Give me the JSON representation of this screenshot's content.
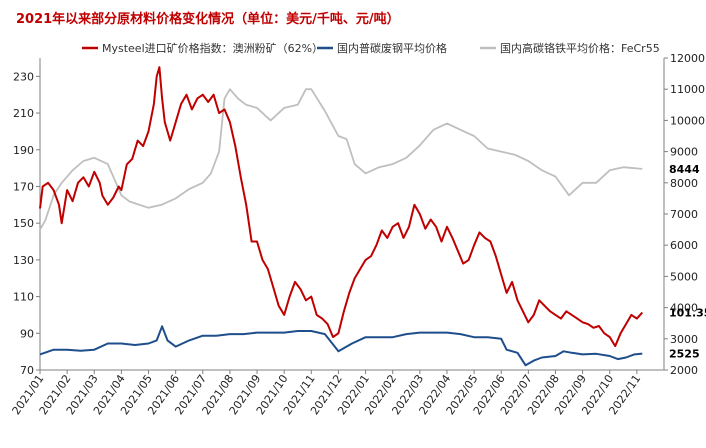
{
  "chart_data": {
    "type": "line",
    "title": "2021年以来部分原材料价格变化情况（单位：美元/千吨、元/吨）",
    "y_left": {
      "ticks": [
        70,
        90,
        110,
        130,
        150,
        170,
        190,
        210,
        230
      ],
      "range": [
        70,
        240
      ]
    },
    "y_right": {
      "ticks": [
        2000,
        3000,
        4000,
        5000,
        6000,
        7000,
        8000,
        9000,
        10000,
        11000,
        12000
      ],
      "range": [
        2000,
        12000
      ]
    },
    "x_ticks": [
      "2021/01",
      "2021/02",
      "2021/03",
      "2021/04",
      "2021/05",
      "2021/06",
      "2021/07",
      "2021/08",
      "2021/09",
      "2021/10",
      "2021/11",
      "2021/12",
      "2022/01",
      "2022/02",
      "2022/03",
      "2022/04",
      "2022/05",
      "2022/06",
      "2022/07",
      "2022/08",
      "2022/09",
      "2022/10",
      "2022/11"
    ],
    "series": [
      {
        "name": "Mysteel进口矿价格指数：澳洲粉矿（62%）",
        "color": "#c00000",
        "axis": "left",
        "end_label": "101.35",
        "points": [
          [
            0,
            158
          ],
          [
            0.1,
            170
          ],
          [
            0.3,
            172
          ],
          [
            0.5,
            168
          ],
          [
            0.7,
            160
          ],
          [
            0.8,
            150
          ],
          [
            1.0,
            168
          ],
          [
            1.2,
            162
          ],
          [
            1.4,
            172
          ],
          [
            1.6,
            175
          ],
          [
            1.8,
            170
          ],
          [
            2.0,
            178
          ],
          [
            2.2,
            172
          ],
          [
            2.3,
            165
          ],
          [
            2.5,
            160
          ],
          [
            2.7,
            164
          ],
          [
            2.9,
            170
          ],
          [
            3.0,
            168
          ],
          [
            3.2,
            182
          ],
          [
            3.4,
            185
          ],
          [
            3.6,
            195
          ],
          [
            3.8,
            192
          ],
          [
            4.0,
            200
          ],
          [
            4.2,
            215
          ],
          [
            4.3,
            230
          ],
          [
            4.4,
            235
          ],
          [
            4.5,
            218
          ],
          [
            4.6,
            205
          ],
          [
            4.8,
            195
          ],
          [
            5.0,
            205
          ],
          [
            5.2,
            215
          ],
          [
            5.4,
            220
          ],
          [
            5.6,
            212
          ],
          [
            5.8,
            218
          ],
          [
            6.0,
            220
          ],
          [
            6.2,
            216
          ],
          [
            6.4,
            220
          ],
          [
            6.6,
            210
          ],
          [
            6.8,
            212
          ],
          [
            7.0,
            205
          ],
          [
            7.2,
            192
          ],
          [
            7.4,
            175
          ],
          [
            7.6,
            160
          ],
          [
            7.8,
            140
          ],
          [
            8.0,
            140
          ],
          [
            8.2,
            130
          ],
          [
            8.4,
            125
          ],
          [
            8.6,
            115
          ],
          [
            8.8,
            105
          ],
          [
            9.0,
            100
          ],
          [
            9.2,
            110
          ],
          [
            9.4,
            118
          ],
          [
            9.6,
            114
          ],
          [
            9.8,
            108
          ],
          [
            10.0,
            110
          ],
          [
            10.2,
            100
          ],
          [
            10.4,
            98
          ],
          [
            10.6,
            95
          ],
          [
            10.8,
            88
          ],
          [
            11.0,
            90
          ],
          [
            11.2,
            102
          ],
          [
            11.4,
            112
          ],
          [
            11.6,
            120
          ],
          [
            11.8,
            125
          ],
          [
            12.0,
            130
          ],
          [
            12.2,
            132
          ],
          [
            12.4,
            138
          ],
          [
            12.6,
            146
          ],
          [
            12.8,
            142
          ],
          [
            13.0,
            148
          ],
          [
            13.2,
            150
          ],
          [
            13.4,
            142
          ],
          [
            13.6,
            148
          ],
          [
            13.8,
            160
          ],
          [
            14.0,
            155
          ],
          [
            14.2,
            147
          ],
          [
            14.4,
            152
          ],
          [
            14.6,
            148
          ],
          [
            14.8,
            140
          ],
          [
            15.0,
            148
          ],
          [
            15.2,
            142
          ],
          [
            15.4,
            135
          ],
          [
            15.6,
            128
          ],
          [
            15.8,
            130
          ],
          [
            16.0,
            138
          ],
          [
            16.2,
            145
          ],
          [
            16.4,
            142
          ],
          [
            16.6,
            140
          ],
          [
            16.8,
            132
          ],
          [
            17.0,
            122
          ],
          [
            17.2,
            112
          ],
          [
            17.4,
            118
          ],
          [
            17.6,
            108
          ],
          [
            17.8,
            102
          ],
          [
            18.0,
            96
          ],
          [
            18.2,
            100
          ],
          [
            18.4,
            108
          ],
          [
            18.6,
            105
          ],
          [
            18.8,
            102
          ],
          [
            19.0,
            100
          ],
          [
            19.2,
            98
          ],
          [
            19.4,
            102
          ],
          [
            19.6,
            100
          ],
          [
            19.8,
            98
          ],
          [
            20.0,
            96
          ],
          [
            20.2,
            95
          ],
          [
            20.4,
            93
          ],
          [
            20.6,
            94
          ],
          [
            20.8,
            90
          ],
          [
            21.0,
            88
          ],
          [
            21.2,
            83
          ],
          [
            21.4,
            90
          ],
          [
            21.6,
            95
          ],
          [
            21.8,
            100
          ],
          [
            22.0,
            98
          ],
          [
            22.2,
            101.35
          ]
        ]
      },
      {
        "name": "国内普碳废钢平均价格",
        "color": "#1f4e8c",
        "axis": "right",
        "end_label": "2525",
        "points": [
          [
            0,
            2500
          ],
          [
            0.5,
            2650
          ],
          [
            1.0,
            2650
          ],
          [
            1.5,
            2620
          ],
          [
            2.0,
            2650
          ],
          [
            2.5,
            2850
          ],
          [
            3.0,
            2850
          ],
          [
            3.5,
            2800
          ],
          [
            4.0,
            2850
          ],
          [
            4.3,
            2950
          ],
          [
            4.5,
            3400
          ],
          [
            4.7,
            2950
          ],
          [
            5.0,
            2750
          ],
          [
            5.5,
            2950
          ],
          [
            6.0,
            3100
          ],
          [
            6.5,
            3100
          ],
          [
            7.0,
            3150
          ],
          [
            7.5,
            3150
          ],
          [
            8.0,
            3200
          ],
          [
            8.5,
            3200
          ],
          [
            9.0,
            3200
          ],
          [
            9.5,
            3250
          ],
          [
            10.0,
            3250
          ],
          [
            10.5,
            3150
          ],
          [
            11.0,
            2600
          ],
          [
            11.5,
            2850
          ],
          [
            12.0,
            3050
          ],
          [
            12.5,
            3050
          ],
          [
            13.0,
            3050
          ],
          [
            13.5,
            3150
          ],
          [
            14.0,
            3200
          ],
          [
            14.5,
            3200
          ],
          [
            15.0,
            3200
          ],
          [
            15.5,
            3150
          ],
          [
            16.0,
            3050
          ],
          [
            16.5,
            3050
          ],
          [
            17.0,
            3000
          ],
          [
            17.2,
            2650
          ],
          [
            17.6,
            2550
          ],
          [
            17.9,
            2150
          ],
          [
            18.2,
            2300
          ],
          [
            18.5,
            2400
          ],
          [
            19.0,
            2450
          ],
          [
            19.3,
            2600
          ],
          [
            19.6,
            2550
          ],
          [
            20.0,
            2500
          ],
          [
            20.5,
            2520
          ],
          [
            21.0,
            2450
          ],
          [
            21.3,
            2350
          ],
          [
            21.6,
            2400
          ],
          [
            21.9,
            2500
          ],
          [
            22.2,
            2525
          ]
        ]
      },
      {
        "name": "国内高碳铬铁平均价格：FeCr55",
        "color": "#bfbfbf",
        "axis": "right",
        "end_label": "8444",
        "points": [
          [
            0,
            6500
          ],
          [
            0.2,
            6800
          ],
          [
            0.5,
            7600
          ],
          [
            0.8,
            8000
          ],
          [
            1.2,
            8400
          ],
          [
            1.6,
            8700
          ],
          [
            2.0,
            8800
          ],
          [
            2.5,
            8600
          ],
          [
            2.8,
            8000
          ],
          [
            3.0,
            7600
          ],
          [
            3.3,
            7400
          ],
          [
            4.0,
            7200
          ],
          [
            4.5,
            7300
          ],
          [
            5.0,
            7500
          ],
          [
            5.5,
            7800
          ],
          [
            6.0,
            8000
          ],
          [
            6.3,
            8300
          ],
          [
            6.6,
            9000
          ],
          [
            6.8,
            10700
          ],
          [
            7.0,
            11000
          ],
          [
            7.3,
            10700
          ],
          [
            7.6,
            10500
          ],
          [
            8.0,
            10400
          ],
          [
            8.5,
            10000
          ],
          [
            9.0,
            10400
          ],
          [
            9.5,
            10500
          ],
          [
            9.8,
            11000
          ],
          [
            10.0,
            11000
          ],
          [
            10.5,
            10300
          ],
          [
            11.0,
            9500
          ],
          [
            11.3,
            9400
          ],
          [
            11.6,
            8600
          ],
          [
            12.0,
            8300
          ],
          [
            12.5,
            8500
          ],
          [
            13.0,
            8600
          ],
          [
            13.5,
            8800
          ],
          [
            14.0,
            9200
          ],
          [
            14.5,
            9700
          ],
          [
            15.0,
            9900
          ],
          [
            15.5,
            9700
          ],
          [
            16.0,
            9500
          ],
          [
            16.5,
            9100
          ],
          [
            17.0,
            9000
          ],
          [
            17.5,
            8900
          ],
          [
            18.0,
            8700
          ],
          [
            18.5,
            8400
          ],
          [
            19.0,
            8200
          ],
          [
            19.5,
            7600
          ],
          [
            20.0,
            8000
          ],
          [
            20.5,
            8000
          ],
          [
            21.0,
            8400
          ],
          [
            21.5,
            8500
          ],
          [
            22.2,
            8444
          ]
        ]
      }
    ]
  }
}
